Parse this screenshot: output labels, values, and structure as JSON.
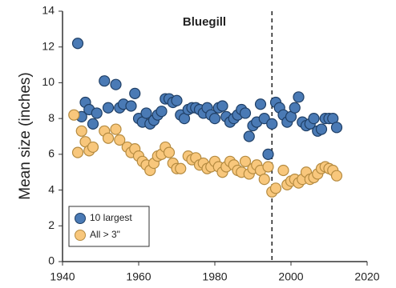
{
  "chart_data": {
    "type": "scatter",
    "title": "Bluegill",
    "y_label": "Mean size (inches)",
    "xlim": [
      1940,
      2020
    ],
    "xticks": [
      1940,
      1960,
      1980,
      2000,
      2020
    ],
    "ylim": [
      0,
      14
    ],
    "yticks": [
      0,
      2,
      4,
      6,
      8,
      10,
      12,
      14
    ],
    "vline": 1995,
    "legend": "lower left",
    "series": [
      {
        "name": "10 largest",
        "color": "#4a7ab5",
        "x": [
          1944,
          1945,
          1946,
          1947,
          1948,
          1949,
          1951,
          1952,
          1954,
          1955,
          1956,
          1958,
          1959,
          1960,
          1961,
          1962,
          1963,
          1964,
          1965,
          1966,
          1967,
          1968,
          1969,
          1970,
          1971,
          1972,
          1973,
          1974,
          1975,
          1976,
          1977,
          1978,
          1979,
          1980,
          1981,
          1982,
          1983,
          1984,
          1985,
          1986,
          1987,
          1988,
          1989,
          1990,
          1991,
          1992,
          1993,
          1994,
          1995,
          1996,
          1997,
          1998,
          1999,
          2000,
          2001,
          2002,
          2003,
          2004,
          2005,
          2006,
          2007,
          2008,
          2009,
          2010,
          2011,
          2012
        ],
        "values": [
          12.2,
          8.1,
          8.9,
          8.5,
          7.7,
          8.3,
          10.1,
          8.6,
          9.9,
          8.6,
          8.8,
          8.7,
          9.4,
          8.0,
          7.8,
          8.3,
          7.7,
          7.9,
          8.2,
          8.4,
          9.1,
          9.1,
          8.9,
          9.0,
          8.2,
          8.0,
          8.5,
          8.6,
          8.6,
          8.5,
          8.3,
          8.6,
          8.2,
          8.0,
          8.6,
          8.7,
          8.1,
          7.8,
          8.0,
          8.2,
          8.5,
          8.3,
          7.0,
          7.6,
          7.8,
          8.8,
          8.0,
          6.0,
          7.7,
          8.9,
          8.6,
          8.2,
          7.8,
          8.1,
          8.6,
          9.2,
          7.8,
          7.6,
          7.7,
          8.0,
          7.3,
          7.4,
          8.0,
          8.0,
          8.0,
          7.5
        ]
      },
      {
        "name": "All > 3\"",
        "color": "#f8c77c",
        "x": [
          1943,
          1944,
          1945,
          1946,
          1947,
          1948,
          1951,
          1952,
          1954,
          1955,
          1957,
          1958,
          1959,
          1960,
          1961,
          1962,
          1963,
          1964,
          1965,
          1966,
          1967,
          1968,
          1969,
          1970,
          1971,
          1973,
          1974,
          1975,
          1976,
          1977,
          1978,
          1979,
          1980,
          1981,
          1982,
          1983,
          1984,
          1985,
          1986,
          1987,
          1988,
          1989,
          1990,
          1991,
          1992,
          1993,
          1994,
          1995,
          1996,
          1998,
          1999,
          2000,
          2001,
          2002,
          2003,
          2004,
          2005,
          2006,
          2007,
          2008,
          2009,
          2010,
          2011,
          2012
        ],
        "values": [
          8.2,
          6.1,
          7.3,
          6.7,
          6.2,
          6.4,
          7.3,
          6.9,
          7.4,
          6.8,
          6.4,
          6.1,
          6.3,
          5.9,
          5.6,
          5.4,
          5.1,
          5.5,
          5.9,
          6.0,
          6.4,
          6.1,
          5.5,
          5.2,
          5.2,
          5.9,
          5.7,
          5.8,
          5.4,
          5.5,
          5.2,
          5.3,
          5.6,
          5.3,
          5.0,
          5.3,
          5.6,
          5.4,
          5.1,
          5.0,
          5.6,
          4.9,
          5.2,
          5.4,
          5.1,
          4.6,
          5.3,
          3.9,
          4.1,
          5.1,
          4.3,
          4.5,
          4.6,
          4.4,
          4.6,
          5.0,
          4.6,
          4.7,
          4.9,
          5.2,
          5.3,
          5.2,
          5.1,
          4.8
        ]
      }
    ]
  }
}
